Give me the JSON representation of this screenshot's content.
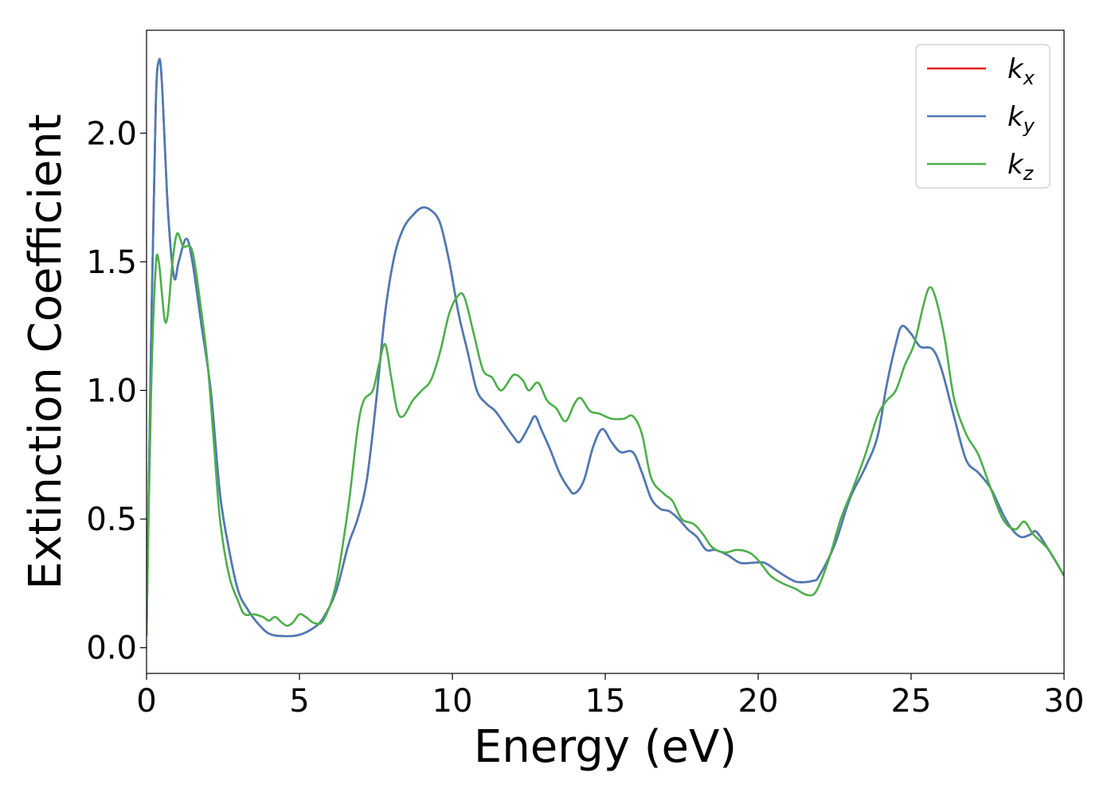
{
  "chart_data": {
    "type": "line",
    "title": "",
    "xlabel": "Energy (eV)",
    "ylabel": "Extinction Coefficient",
    "xlim": [
      0,
      30
    ],
    "ylim": [
      -0.1,
      2.4
    ],
    "xticks": [
      0,
      5,
      10,
      15,
      20,
      25,
      30
    ],
    "yticks": [
      0.0,
      0.5,
      1.0,
      1.5,
      2.0
    ],
    "xtick_labels": [
      "0",
      "5",
      "10",
      "15",
      "20",
      "25",
      "30"
    ],
    "ytick_labels": [
      "0.0",
      "0.5",
      "1.0",
      "1.5",
      "2.0"
    ],
    "grid": false,
    "legend_position": "top-right",
    "series": [
      {
        "name": "k",
        "sub": "x",
        "color": "#e41a1c",
        "points": [
          [
            0,
            0.05
          ],
          [
            0.15,
            1.2
          ],
          [
            0.3,
            2.1
          ],
          [
            0.4,
            2.28
          ],
          [
            0.5,
            2.2
          ],
          [
            0.7,
            1.7
          ],
          [
            0.9,
            1.44
          ],
          [
            1.05,
            1.5
          ],
          [
            1.3,
            1.59
          ],
          [
            1.5,
            1.5
          ],
          [
            1.8,
            1.25
          ],
          [
            2.1,
            1.0
          ],
          [
            2.4,
            0.6
          ],
          [
            2.7,
            0.38
          ],
          [
            3.0,
            0.22
          ],
          [
            3.3,
            0.15
          ],
          [
            3.6,
            0.1
          ],
          [
            4.0,
            0.055
          ],
          [
            4.5,
            0.045
          ],
          [
            5.0,
            0.05
          ],
          [
            5.5,
            0.08
          ],
          [
            5.8,
            0.12
          ],
          [
            6.2,
            0.22
          ],
          [
            6.6,
            0.4
          ],
          [
            6.9,
            0.5
          ],
          [
            7.2,
            0.65
          ],
          [
            7.5,
            0.95
          ],
          [
            7.8,
            1.3
          ],
          [
            8.1,
            1.52
          ],
          [
            8.4,
            1.63
          ],
          [
            8.7,
            1.68
          ],
          [
            9.0,
            1.71
          ],
          [
            9.3,
            1.7
          ],
          [
            9.6,
            1.65
          ],
          [
            9.9,
            1.5
          ],
          [
            10.2,
            1.3
          ],
          [
            10.5,
            1.15
          ],
          [
            10.8,
            1.0
          ],
          [
            11.1,
            0.95
          ],
          [
            11.4,
            0.92
          ],
          [
            11.7,
            0.87
          ],
          [
            12.0,
            0.82
          ],
          [
            12.2,
            0.8
          ],
          [
            12.5,
            0.86
          ],
          [
            12.7,
            0.9
          ],
          [
            12.9,
            0.85
          ],
          [
            13.2,
            0.77
          ],
          [
            13.5,
            0.68
          ],
          [
            13.8,
            0.62
          ],
          [
            14.0,
            0.6
          ],
          [
            14.3,
            0.65
          ],
          [
            14.6,
            0.78
          ],
          [
            14.9,
            0.85
          ],
          [
            15.2,
            0.8
          ],
          [
            15.5,
            0.76
          ],
          [
            15.9,
            0.76
          ],
          [
            16.2,
            0.68
          ],
          [
            16.5,
            0.58
          ],
          [
            16.8,
            0.54
          ],
          [
            17.1,
            0.53
          ],
          [
            17.4,
            0.5
          ],
          [
            17.7,
            0.46
          ],
          [
            18.0,
            0.43
          ],
          [
            18.3,
            0.38
          ],
          [
            18.6,
            0.38
          ],
          [
            19.0,
            0.36
          ],
          [
            19.4,
            0.33
          ],
          [
            19.8,
            0.33
          ],
          [
            20.2,
            0.33
          ],
          [
            20.6,
            0.3
          ],
          [
            21.0,
            0.27
          ],
          [
            21.3,
            0.255
          ],
          [
            21.8,
            0.26
          ],
          [
            22.0,
            0.28
          ],
          [
            22.5,
            0.4
          ],
          [
            23.0,
            0.58
          ],
          [
            23.5,
            0.7
          ],
          [
            23.9,
            0.82
          ],
          [
            24.2,
            1.02
          ],
          [
            24.5,
            1.18
          ],
          [
            24.7,
            1.25
          ],
          [
            25.0,
            1.22
          ],
          [
            25.3,
            1.17
          ],
          [
            25.7,
            1.16
          ],
          [
            26.0,
            1.08
          ],
          [
            26.4,
            0.9
          ],
          [
            26.8,
            0.73
          ],
          [
            27.2,
            0.68
          ],
          [
            27.6,
            0.62
          ],
          [
            28.0,
            0.52
          ],
          [
            28.3,
            0.46
          ],
          [
            28.6,
            0.43
          ],
          [
            28.9,
            0.44
          ],
          [
            29.1,
            0.45
          ],
          [
            29.5,
            0.38
          ],
          [
            30.0,
            0.28
          ]
        ]
      },
      {
        "name": "k",
        "sub": "y",
        "color": "#4a7bb7",
        "points": [
          [
            0,
            0.05
          ],
          [
            0.15,
            1.2
          ],
          [
            0.3,
            2.1
          ],
          [
            0.4,
            2.28
          ],
          [
            0.5,
            2.2
          ],
          [
            0.7,
            1.7
          ],
          [
            0.9,
            1.44
          ],
          [
            1.05,
            1.5
          ],
          [
            1.3,
            1.59
          ],
          [
            1.5,
            1.5
          ],
          [
            1.8,
            1.25
          ],
          [
            2.1,
            1.0
          ],
          [
            2.4,
            0.6
          ],
          [
            2.7,
            0.38
          ],
          [
            3.0,
            0.22
          ],
          [
            3.3,
            0.15
          ],
          [
            3.6,
            0.1
          ],
          [
            4.0,
            0.055
          ],
          [
            4.5,
            0.045
          ],
          [
            5.0,
            0.05
          ],
          [
            5.5,
            0.08
          ],
          [
            5.8,
            0.12
          ],
          [
            6.2,
            0.22
          ],
          [
            6.6,
            0.4
          ],
          [
            6.9,
            0.5
          ],
          [
            7.2,
            0.65
          ],
          [
            7.5,
            0.95
          ],
          [
            7.8,
            1.3
          ],
          [
            8.1,
            1.52
          ],
          [
            8.4,
            1.63
          ],
          [
            8.7,
            1.68
          ],
          [
            9.0,
            1.71
          ],
          [
            9.3,
            1.7
          ],
          [
            9.6,
            1.65
          ],
          [
            9.9,
            1.5
          ],
          [
            10.2,
            1.3
          ],
          [
            10.5,
            1.15
          ],
          [
            10.8,
            1.0
          ],
          [
            11.1,
            0.95
          ],
          [
            11.4,
            0.92
          ],
          [
            11.7,
            0.87
          ],
          [
            12.0,
            0.82
          ],
          [
            12.2,
            0.8
          ],
          [
            12.5,
            0.86
          ],
          [
            12.7,
            0.9
          ],
          [
            12.9,
            0.85
          ],
          [
            13.2,
            0.77
          ],
          [
            13.5,
            0.68
          ],
          [
            13.8,
            0.62
          ],
          [
            14.0,
            0.6
          ],
          [
            14.3,
            0.65
          ],
          [
            14.6,
            0.78
          ],
          [
            14.9,
            0.85
          ],
          [
            15.2,
            0.8
          ],
          [
            15.5,
            0.76
          ],
          [
            15.9,
            0.76
          ],
          [
            16.2,
            0.68
          ],
          [
            16.5,
            0.58
          ],
          [
            16.8,
            0.54
          ],
          [
            17.1,
            0.53
          ],
          [
            17.4,
            0.5
          ],
          [
            17.7,
            0.46
          ],
          [
            18.0,
            0.43
          ],
          [
            18.3,
            0.38
          ],
          [
            18.6,
            0.38
          ],
          [
            19.0,
            0.36
          ],
          [
            19.4,
            0.33
          ],
          [
            19.8,
            0.33
          ],
          [
            20.2,
            0.33
          ],
          [
            20.6,
            0.3
          ],
          [
            21.0,
            0.27
          ],
          [
            21.3,
            0.255
          ],
          [
            21.8,
            0.26
          ],
          [
            22.0,
            0.28
          ],
          [
            22.5,
            0.4
          ],
          [
            23.0,
            0.58
          ],
          [
            23.5,
            0.7
          ],
          [
            23.9,
            0.82
          ],
          [
            24.2,
            1.02
          ],
          [
            24.5,
            1.18
          ],
          [
            24.7,
            1.25
          ],
          [
            25.0,
            1.22
          ],
          [
            25.3,
            1.17
          ],
          [
            25.7,
            1.16
          ],
          [
            26.0,
            1.08
          ],
          [
            26.4,
            0.9
          ],
          [
            26.8,
            0.73
          ],
          [
            27.2,
            0.68
          ],
          [
            27.6,
            0.62
          ],
          [
            28.0,
            0.52
          ],
          [
            28.3,
            0.46
          ],
          [
            28.6,
            0.43
          ],
          [
            28.9,
            0.44
          ],
          [
            29.1,
            0.45
          ],
          [
            29.5,
            0.38
          ],
          [
            30.0,
            0.28
          ]
        ]
      },
      {
        "name": "k",
        "sub": "z",
        "color": "#4daf4a",
        "points": [
          [
            0,
            0.05
          ],
          [
            0.15,
            1.0
          ],
          [
            0.3,
            1.48
          ],
          [
            0.4,
            1.5
          ],
          [
            0.5,
            1.38
          ],
          [
            0.6,
            1.27
          ],
          [
            0.7,
            1.3
          ],
          [
            0.85,
            1.5
          ],
          [
            1.0,
            1.61
          ],
          [
            1.2,
            1.56
          ],
          [
            1.5,
            1.54
          ],
          [
            1.8,
            1.3
          ],
          [
            2.0,
            1.1
          ],
          [
            2.2,
            0.8
          ],
          [
            2.4,
            0.5
          ],
          [
            2.7,
            0.28
          ],
          [
            3.0,
            0.18
          ],
          [
            3.2,
            0.13
          ],
          [
            3.5,
            0.13
          ],
          [
            3.8,
            0.12
          ],
          [
            4.0,
            0.105
          ],
          [
            4.2,
            0.12
          ],
          [
            4.4,
            0.1
          ],
          [
            4.6,
            0.085
          ],
          [
            4.8,
            0.1
          ],
          [
            5.0,
            0.13
          ],
          [
            5.2,
            0.12
          ],
          [
            5.5,
            0.095
          ],
          [
            5.8,
            0.11
          ],
          [
            6.2,
            0.25
          ],
          [
            6.6,
            0.55
          ],
          [
            6.9,
            0.85
          ],
          [
            7.1,
            0.96
          ],
          [
            7.4,
            1.0
          ],
          [
            7.6,
            1.1
          ],
          [
            7.8,
            1.18
          ],
          [
            8.0,
            1.05
          ],
          [
            8.2,
            0.92
          ],
          [
            8.4,
            0.9
          ],
          [
            8.7,
            0.96
          ],
          [
            9.0,
            1.0
          ],
          [
            9.3,
            1.04
          ],
          [
            9.6,
            1.15
          ],
          [
            9.9,
            1.3
          ],
          [
            10.2,
            1.37
          ],
          [
            10.4,
            1.36
          ],
          [
            10.7,
            1.22
          ],
          [
            11.0,
            1.08
          ],
          [
            11.3,
            1.05
          ],
          [
            11.6,
            1.0
          ],
          [
            12.0,
            1.06
          ],
          [
            12.3,
            1.04
          ],
          [
            12.5,
            1.0
          ],
          [
            12.8,
            1.03
          ],
          [
            13.1,
            0.96
          ],
          [
            13.4,
            0.93
          ],
          [
            13.7,
            0.88
          ],
          [
            14.0,
            0.95
          ],
          [
            14.2,
            0.97
          ],
          [
            14.5,
            0.92
          ],
          [
            14.8,
            0.91
          ],
          [
            15.2,
            0.89
          ],
          [
            15.6,
            0.89
          ],
          [
            15.9,
            0.9
          ],
          [
            16.2,
            0.83
          ],
          [
            16.5,
            0.66
          ],
          [
            16.9,
            0.6
          ],
          [
            17.2,
            0.57
          ],
          [
            17.5,
            0.5
          ],
          [
            17.9,
            0.48
          ],
          [
            18.2,
            0.44
          ],
          [
            18.5,
            0.39
          ],
          [
            18.9,
            0.37
          ],
          [
            19.3,
            0.38
          ],
          [
            19.7,
            0.37
          ],
          [
            20.0,
            0.34
          ],
          [
            20.4,
            0.28
          ],
          [
            20.8,
            0.25
          ],
          [
            21.2,
            0.23
          ],
          [
            21.6,
            0.205
          ],
          [
            21.9,
            0.22
          ],
          [
            22.3,
            0.34
          ],
          [
            22.7,
            0.5
          ],
          [
            23.1,
            0.62
          ],
          [
            23.5,
            0.75
          ],
          [
            23.9,
            0.9
          ],
          [
            24.2,
            0.96
          ],
          [
            24.5,
            1.0
          ],
          [
            24.8,
            1.1
          ],
          [
            25.1,
            1.18
          ],
          [
            25.4,
            1.33
          ],
          [
            25.6,
            1.4
          ],
          [
            25.8,
            1.36
          ],
          [
            26.1,
            1.2
          ],
          [
            26.4,
            0.97
          ],
          [
            26.8,
            0.83
          ],
          [
            27.2,
            0.75
          ],
          [
            27.6,
            0.62
          ],
          [
            28.0,
            0.5
          ],
          [
            28.4,
            0.46
          ],
          [
            28.7,
            0.49
          ],
          [
            29.0,
            0.44
          ],
          [
            29.5,
            0.38
          ],
          [
            30.0,
            0.28
          ]
        ]
      }
    ]
  }
}
